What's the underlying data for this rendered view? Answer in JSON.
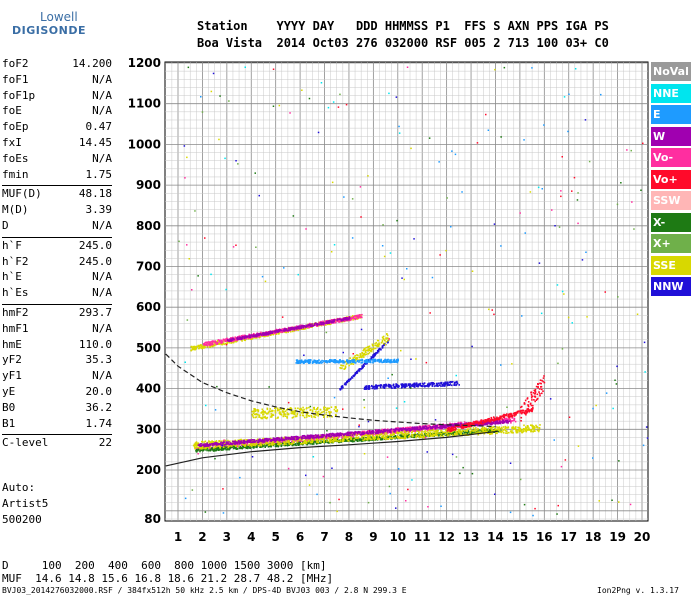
{
  "logo": {
    "top": "Lowell",
    "main": "DIGISONDE"
  },
  "header": {
    "labels_row": "Station    YYYY DAY   DDD HHMMSS P1  FFS S AXN PPS IGA PS",
    "values_row": "Boa Vista  2014 Oct03 276 032000 RSF 005 2 713 100 03+ C0"
  },
  "params": [
    {
      "label": "foF2",
      "value": "14.200"
    },
    {
      "label": "foF1",
      "value": "N/A"
    },
    {
      "label": "foF1p",
      "value": "N/A"
    },
    {
      "label": "foE",
      "value": "N/A"
    },
    {
      "label": "foEp",
      "value": "0.47"
    },
    {
      "label": "fxI",
      "value": "14.45"
    },
    {
      "label": "foEs",
      "value": "N/A"
    },
    {
      "label": "fmin",
      "value": "1.75"
    },
    {
      "label": "MUF(D)",
      "value": "48.18"
    },
    {
      "label": "M(D)",
      "value": "3.39"
    },
    {
      "label": "D",
      "value": "N/A"
    },
    {
      "label": "h`F",
      "value": "245.0"
    },
    {
      "label": "h`F2",
      "value": "245.0"
    },
    {
      "label": "h`E",
      "value": "N/A"
    },
    {
      "label": "h`Es",
      "value": "N/A"
    },
    {
      "label": "hmF2",
      "value": "293.7"
    },
    {
      "label": "hmF1",
      "value": "N/A"
    },
    {
      "label": "hmE",
      "value": "110.0"
    },
    {
      "label": "yF2",
      "value": "35.3"
    },
    {
      "label": "yF1",
      "value": "N/A"
    },
    {
      "label": "yE",
      "value": "20.0"
    },
    {
      "label": "B0",
      "value": "36.2"
    },
    {
      "label": "B1",
      "value": "1.74"
    },
    {
      "label": "C-level",
      "value": "22"
    }
  ],
  "auto": {
    "line1": "Auto:",
    "line2": "Artist5",
    "line3": "500200"
  },
  "legend": [
    {
      "name": "NoVal",
      "color": "#9a9a9a"
    },
    {
      "name": "NNE",
      "color": "#00e5ee"
    },
    {
      "name": "E",
      "color": "#1e9bff"
    },
    {
      "name": "W",
      "color": "#a000b0"
    },
    {
      "name": "Vo-",
      "color": "#ff2ea0"
    },
    {
      "name": "Vo+",
      "color": "#ff0a2a"
    },
    {
      "name": "SSW",
      "color": "#ffb6b6"
    },
    {
      "name": "X-",
      "color": "#1e7a14"
    },
    {
      "name": "X+",
      "color": "#6fb04a"
    },
    {
      "name": "SSE",
      "color": "#d8d800"
    },
    {
      "name": "NNW",
      "color": "#2010d8"
    }
  ],
  "muf_table": {
    "d_row": "D     100  200  400  600  800 1000 1500 3000 [km]",
    "muf_row": "MUF  14.6 14.8 15.6 16.8 18.6 21.2 28.7 48.2 [MHz]"
  },
  "footer": {
    "left": "BVJ03_2014276032000.RSF / 384fx512h 50 kHz 2.5 km / DPS-4D BVJ03 003 / 2.8 N 299.3 E",
    "right": "Ion2Png v. 1.3.17"
  },
  "chart_data": {
    "type": "scatter",
    "title": "",
    "xlabel": "",
    "ylabel": "",
    "xlim": [
      0.5,
      20.3
    ],
    "ylim": [
      80,
      1210
    ],
    "xticks": [
      1,
      2,
      3,
      4,
      5,
      6,
      7,
      8,
      9,
      10,
      11,
      12,
      13,
      14,
      15,
      16,
      17,
      18,
      19,
      20
    ],
    "yticks": [
      80,
      200,
      300,
      400,
      500,
      600,
      700,
      800,
      900,
      1000,
      1100,
      1200
    ],
    "grid": true,
    "clusters": [
      {
        "series": "Vo-",
        "x_range": [
          1.7,
          14.8
        ],
        "h_start": 255,
        "h_end": 325,
        "width": 12
      },
      {
        "series": "X-",
        "x_range": [
          1.7,
          14.2
        ],
        "h_start": 250,
        "h_end": 300,
        "width": 8
      },
      {
        "series": "SSE",
        "x_range": [
          1.6,
          15.8
        ],
        "h_start": 262,
        "h_end": 305,
        "width": 18
      },
      {
        "series": "W",
        "x_range": [
          1.8,
          14.6
        ],
        "h_start": 262,
        "h_end": 322,
        "width": 8
      },
      {
        "series": "Vo+",
        "x_range": [
          12.0,
          15.5
        ],
        "h_start": 300,
        "h_end": 350,
        "width": 10
      },
      {
        "series": "SSE",
        "x_range": [
          4.0,
          7.5
        ],
        "h_start": 340,
        "h_end": 345,
        "width": 25
      },
      {
        "series": "SSE",
        "x_range": [
          1.5,
          8.5
        ],
        "h_start": 500,
        "h_end": 580,
        "width": 10
      },
      {
        "series": "Vo-",
        "x_range": [
          2.0,
          8.5
        ],
        "h_start": 510,
        "h_end": 580,
        "width": 10
      },
      {
        "series": "W",
        "x_range": [
          3.0,
          8.0
        ],
        "h_start": 520,
        "h_end": 575,
        "width": 6
      },
      {
        "series": "NNW",
        "x_range": [
          8.6,
          12.5
        ],
        "h_start": 405,
        "h_end": 415,
        "width": 10
      },
      {
        "series": "NNW",
        "x_range": [
          7.6,
          9.6
        ],
        "h_start": 400,
        "h_end": 520,
        "width": 6
      },
      {
        "series": "SSE",
        "x_range": [
          7.6,
          9.6
        ],
        "h_start": 450,
        "h_end": 530,
        "width": 20
      },
      {
        "series": "E",
        "x_range": [
          5.8,
          10.0
        ],
        "h_start": 468,
        "h_end": 470,
        "width": 8
      },
      {
        "series": "Vo+",
        "x_range": [
          15.0,
          16.0
        ],
        "h_start": 340,
        "h_end": 420,
        "width": 40
      }
    ],
    "curves": [
      {
        "name": "profile-solid",
        "style": "solid",
        "x": [
          0.5,
          2.0,
          4.0,
          6.0,
          8.0,
          10.0,
          12.0,
          14.1
        ],
        "y": [
          210,
          230,
          245,
          255,
          262,
          270,
          280,
          295
        ]
      },
      {
        "name": "profile-dashed",
        "style": "dashed",
        "x": [
          0.5,
          1.0,
          2.0,
          3.0,
          4.0,
          5.0,
          6.0,
          7.0,
          8.0,
          9.0,
          10.0,
          11.0,
          12.0,
          13.0,
          14.0
        ],
        "y": [
          485,
          455,
          415,
          390,
          370,
          355,
          343,
          335,
          328,
          322,
          318,
          314,
          311,
          309,
          307
        ]
      }
    ]
  }
}
